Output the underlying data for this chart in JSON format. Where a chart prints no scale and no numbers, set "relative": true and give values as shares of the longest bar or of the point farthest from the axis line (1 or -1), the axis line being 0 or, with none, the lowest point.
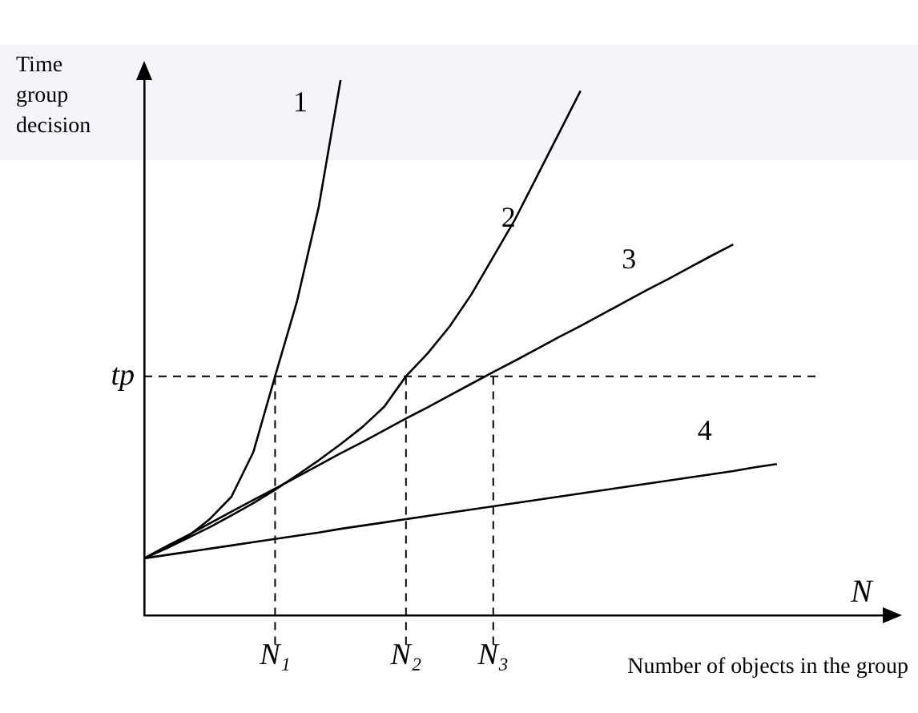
{
  "chart_data": {
    "type": "line",
    "relative": true,
    "ylabel": "Time group decision",
    "xlabel": "Number of objects in the group",
    "annotations": [
      "N"
    ],
    "categories": [
      null,
      null,
      null,
      null,
      null,
      null,
      "N₁",
      null,
      null,
      null,
      null,
      null,
      "N₂",
      null,
      null,
      null,
      "N₃",
      null,
      null,
      null,
      null,
      null,
      null,
      null,
      null,
      null,
      null,
      null,
      null,
      null,
      null,
      null,
      null,
      null,
      null
    ],
    "series": [
      {
        "name": "1",
        "color": "#000000",
        "values": [
          0.107,
          0.127,
          0.148,
          0.18,
          0.222,
          0.305,
          0.447,
          0.586,
          0.763,
          1,
          null,
          null,
          null,
          null,
          null,
          null,
          null,
          null,
          null,
          null,
          null,
          null,
          null,
          null,
          null,
          null,
          null,
          null,
          null,
          null,
          null,
          null,
          null,
          null,
          null
        ]
      },
      {
        "name": "2",
        "color": "#000000",
        "values": [
          0.107,
          0.125,
          0.145,
          0.165,
          0.187,
          0.21,
          0.235,
          0.262,
          0.29,
          0.32,
          0.352,
          0.39,
          0.447,
          0.49,
          0.54,
          0.6,
          0.67,
          0.74,
          0.82,
          0.9,
          0.98,
          null,
          null,
          null,
          null,
          null,
          null,
          null,
          null,
          null,
          null,
          null,
          null,
          null,
          null
        ]
      },
      {
        "name": "3",
        "color": "#000000",
        "values": [
          0.107,
          0.129,
          0.15,
          0.172,
          0.194,
          0.216,
          0.237,
          0.259,
          0.281,
          0.303,
          0.324,
          0.346,
          0.368,
          0.389,
          0.411,
          0.433,
          0.455,
          0.476,
          0.498,
          0.52,
          0.541,
          0.563,
          0.585,
          0.607,
          0.628,
          0.65,
          0.672,
          0.693,
          null,
          null,
          null,
          null,
          null,
          null,
          null
        ]
      },
      {
        "name": "4",
        "color": "#000000",
        "values": [
          0.107,
          0.113,
          0.119,
          0.125,
          0.131,
          0.137,
          0.143,
          0.149,
          0.155,
          0.162,
          0.168,
          0.174,
          0.18,
          0.186,
          0.192,
          0.198,
          0.204,
          0.21,
          0.216,
          0.222,
          0.228,
          0.234,
          0.24,
          0.246,
          0.252,
          0.258,
          0.264,
          0.27,
          0.277,
          0.283,
          null,
          null,
          null,
          null,
          null
        ]
      }
    ],
    "ref_lines": [
      {
        "axis": "y",
        "value": 0.447,
        "label": "tp",
        "line_style": "dashed",
        "color": "#000000"
      }
    ],
    "legend": false,
    "marker": "none",
    "line_style": "solid"
  }
}
